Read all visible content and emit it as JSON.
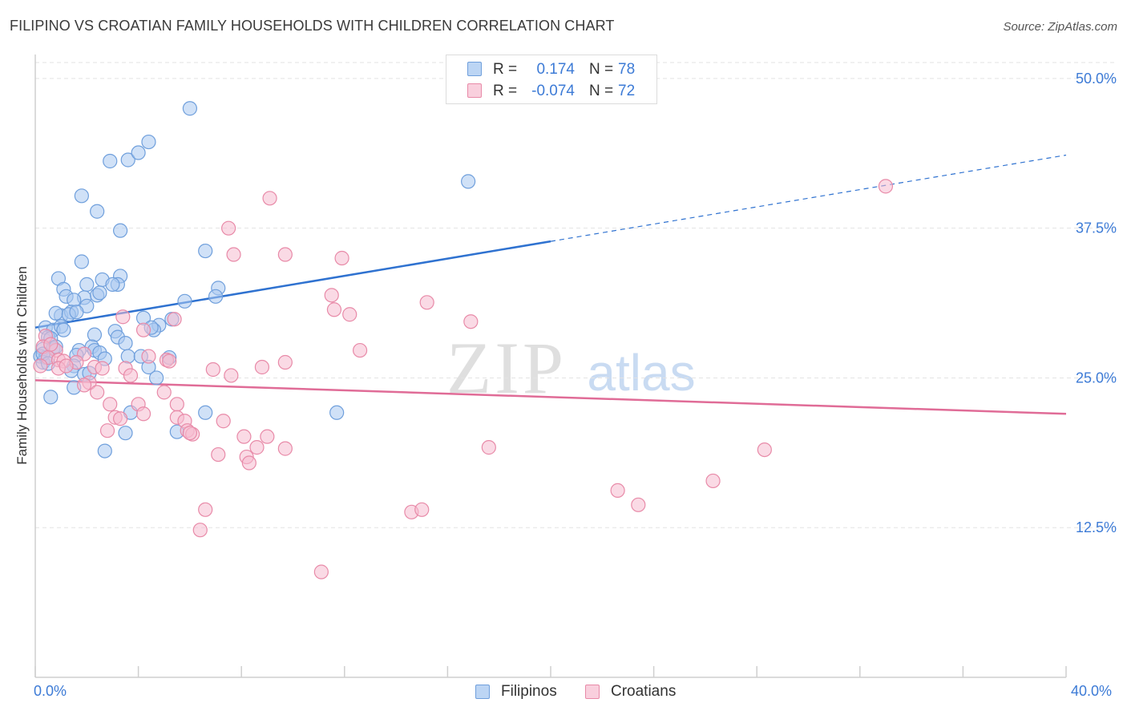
{
  "title": "FILIPINO VS CROATIAN FAMILY HOUSEHOLDS WITH CHILDREN CORRELATION CHART",
  "source": "Source: ZipAtlas.com",
  "watermark": {
    "zip": "ZIP",
    "atlas": "atlas"
  },
  "colors": {
    "blue_fill": "#a9c8f0",
    "blue_stroke": "#6f9fdc",
    "blue_line": "#2f72d0",
    "pink_fill": "#f6bcd0",
    "pink_stroke": "#e88aa8",
    "pink_line": "#e06c97",
    "axis_text": "#3d7bd6",
    "grid": "#e3e3e3"
  },
  "legend_top": {
    "rows": [
      {
        "r_label": "R =",
        "r_value": "0.174",
        "n_label": "N =",
        "n_value": "78",
        "color": "blue"
      },
      {
        "r_label": "R =",
        "r_value": "-0.074",
        "n_label": "N =",
        "n_value": "72",
        "color": "pink"
      }
    ]
  },
  "legend_bottom": [
    {
      "label": "Filipinos",
      "color": "blue"
    },
    {
      "label": "Croatians",
      "color": "pink"
    }
  ],
  "chart_data": {
    "type": "scatter",
    "title": "FILIPINO VS CROATIAN FAMILY HOUSEHOLDS WITH CHILDREN CORRELATION CHART",
    "xlabel": "",
    "ylabel": "Family Households with Children",
    "xlim": [
      0,
      40
    ],
    "ylim": [
      0,
      52
    ],
    "x_tick_labels": [
      "0.0%",
      "40.0%"
    ],
    "y_ticks": [
      12.5,
      25.0,
      37.5,
      50.0
    ],
    "y_tick_labels": [
      "12.5%",
      "25.0%",
      "37.5%",
      "50.0%"
    ],
    "grid": true,
    "legend_position": "top-center",
    "series": [
      {
        "name": "Filipinos",
        "color": "blue",
        "r": 0.174,
        "n": 78,
        "trend": {
          "x0": 0,
          "y0": 29.2,
          "x1": 20.0,
          "y1": 36.4,
          "dashed_to_x": 40.0,
          "dashed_y1": 43.6
        },
        "points": [
          [
            6.0,
            47.5
          ],
          [
            4.4,
            44.7
          ],
          [
            3.6,
            43.2
          ],
          [
            4.0,
            43.8
          ],
          [
            2.9,
            43.1
          ],
          [
            16.8,
            41.4
          ],
          [
            1.8,
            40.2
          ],
          [
            2.4,
            38.9
          ],
          [
            3.3,
            37.3
          ],
          [
            6.6,
            35.6
          ],
          [
            1.8,
            34.7
          ],
          [
            0.9,
            33.3
          ],
          [
            2.6,
            33.2
          ],
          [
            3.3,
            33.5
          ],
          [
            3.2,
            32.8
          ],
          [
            1.1,
            32.4
          ],
          [
            2.0,
            32.8
          ],
          [
            7.1,
            32.5
          ],
          [
            1.2,
            31.8
          ],
          [
            1.9,
            31.7
          ],
          [
            2.4,
            31.9
          ],
          [
            2.5,
            32.1
          ],
          [
            3.0,
            32.8
          ],
          [
            5.8,
            31.4
          ],
          [
            7.0,
            31.8
          ],
          [
            1.5,
            31.5
          ],
          [
            2.0,
            31.0
          ],
          [
            1.0,
            30.2
          ],
          [
            1.4,
            30.5
          ],
          [
            0.8,
            30.4
          ],
          [
            1.3,
            30.3
          ],
          [
            1.6,
            30.5
          ],
          [
            4.2,
            30.0
          ],
          [
            4.8,
            29.4
          ],
          [
            5.3,
            29.9
          ],
          [
            0.4,
            29.2
          ],
          [
            0.7,
            29.0
          ],
          [
            1.0,
            29.3
          ],
          [
            3.1,
            28.9
          ],
          [
            4.6,
            29.0
          ],
          [
            4.5,
            29.2
          ],
          [
            0.5,
            28.4
          ],
          [
            0.6,
            28.3
          ],
          [
            2.3,
            28.6
          ],
          [
            3.2,
            28.4
          ],
          [
            3.5,
            27.9
          ],
          [
            0.3,
            27.4
          ],
          [
            0.7,
            27.5
          ],
          [
            0.8,
            27.6
          ],
          [
            1.7,
            27.3
          ],
          [
            2.2,
            27.6
          ],
          [
            2.3,
            27.3
          ],
          [
            2.5,
            27.1
          ],
          [
            0.2,
            26.8
          ],
          [
            0.4,
            26.7
          ],
          [
            1.6,
            26.9
          ],
          [
            2.7,
            26.6
          ],
          [
            3.6,
            26.8
          ],
          [
            4.1,
            26.8
          ],
          [
            5.2,
            26.7
          ],
          [
            0.3,
            26.3
          ],
          [
            1.5,
            26.0
          ],
          [
            4.4,
            25.9
          ],
          [
            1.4,
            25.6
          ],
          [
            1.9,
            25.3
          ],
          [
            4.7,
            25.0
          ],
          [
            1.5,
            24.2
          ],
          [
            0.6,
            23.4
          ],
          [
            3.7,
            22.1
          ],
          [
            6.6,
            22.1
          ],
          [
            11.7,
            22.1
          ],
          [
            3.5,
            20.4
          ],
          [
            5.5,
            20.5
          ],
          [
            2.7,
            18.9
          ],
          [
            0.3,
            27.0
          ],
          [
            0.5,
            26.2
          ],
          [
            1.1,
            29.0
          ],
          [
            2.1,
            25.4
          ]
        ]
      },
      {
        "name": "Croatians",
        "color": "pink",
        "r": -0.074,
        "n": 72,
        "trend": {
          "x0": 0,
          "y0": 24.8,
          "x1": 40.0,
          "y1": 22.0
        },
        "points": [
          [
            33.0,
            41.0
          ],
          [
            9.1,
            40.0
          ],
          [
            7.5,
            37.5
          ],
          [
            7.7,
            35.3
          ],
          [
            9.7,
            35.3
          ],
          [
            11.9,
            35.0
          ],
          [
            11.5,
            31.9
          ],
          [
            15.2,
            31.3
          ],
          [
            11.6,
            30.7
          ],
          [
            12.2,
            30.3
          ],
          [
            16.9,
            29.7
          ],
          [
            3.4,
            30.1
          ],
          [
            4.2,
            29.0
          ],
          [
            5.4,
            29.9
          ],
          [
            12.6,
            27.3
          ],
          [
            0.4,
            28.5
          ],
          [
            0.3,
            27.6
          ],
          [
            0.8,
            27.3
          ],
          [
            1.9,
            27.0
          ],
          [
            4.4,
            26.8
          ],
          [
            0.5,
            26.7
          ],
          [
            0.9,
            26.5
          ],
          [
            1.1,
            26.4
          ],
          [
            1.6,
            26.3
          ],
          [
            0.2,
            26.0
          ],
          [
            0.9,
            25.8
          ],
          [
            2.3,
            25.9
          ],
          [
            2.6,
            25.8
          ],
          [
            3.5,
            25.8
          ],
          [
            5.1,
            26.5
          ],
          [
            5.2,
            26.4
          ],
          [
            6.9,
            25.7
          ],
          [
            8.8,
            25.9
          ],
          [
            9.7,
            26.3
          ],
          [
            3.7,
            25.2
          ],
          [
            7.6,
            25.2
          ],
          [
            2.1,
            24.6
          ],
          [
            1.9,
            24.4
          ],
          [
            2.4,
            23.8
          ],
          [
            5.0,
            23.8
          ],
          [
            2.9,
            22.8
          ],
          [
            4.0,
            22.8
          ],
          [
            5.5,
            22.8
          ],
          [
            3.1,
            21.7
          ],
          [
            4.2,
            22.0
          ],
          [
            5.5,
            21.7
          ],
          [
            5.8,
            21.4
          ],
          [
            7.3,
            21.4
          ],
          [
            2.8,
            20.6
          ],
          [
            5.9,
            20.6
          ],
          [
            6.1,
            20.3
          ],
          [
            6.0,
            20.4
          ],
          [
            8.1,
            20.1
          ],
          [
            9.0,
            20.1
          ],
          [
            8.6,
            19.2
          ],
          [
            9.7,
            19.1
          ],
          [
            17.6,
            19.2
          ],
          [
            28.3,
            19.0
          ],
          [
            7.1,
            18.6
          ],
          [
            8.2,
            18.4
          ],
          [
            8.3,
            17.9
          ],
          [
            22.6,
            15.6
          ],
          [
            26.3,
            16.4
          ],
          [
            23.4,
            14.4
          ],
          [
            14.6,
            13.8
          ],
          [
            15.0,
            14.0
          ],
          [
            6.6,
            14.0
          ],
          [
            6.4,
            12.3
          ],
          [
            11.1,
            8.8
          ],
          [
            3.3,
            21.6
          ],
          [
            0.6,
            27.8
          ],
          [
            1.2,
            26.0
          ]
        ]
      }
    ]
  }
}
